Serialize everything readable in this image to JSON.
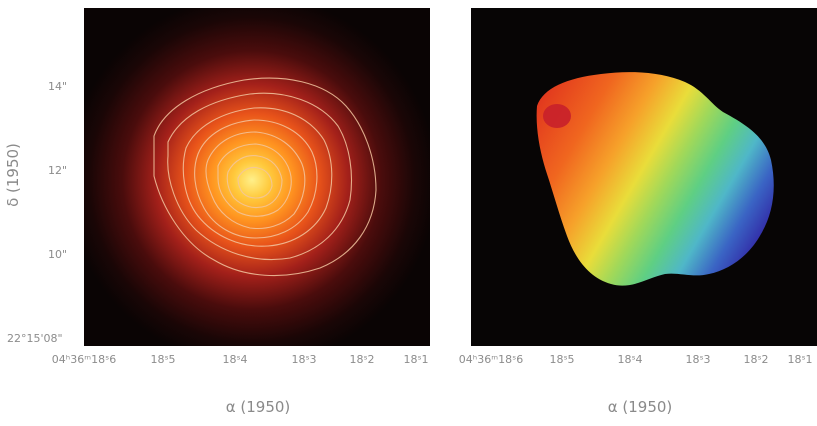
{
  "figure": {
    "left_panel": {
      "description_icon": "intensity-map-with-contours",
      "y_axis_label": "δ (1950)",
      "y_ticks": [
        "14\"",
        "12\"",
        "10\"",
        "22°15'08\""
      ],
      "x_ticks": [
        "04ʰ36ᵐ18ˢ6",
        "18ˢ5",
        "18ˢ4",
        "18ˢ3",
        "18ˢ2",
        "18ˢ1"
      ],
      "x_axis_label": "α (1950)"
    },
    "right_panel": {
      "description_icon": "velocity-field-map",
      "x_ticks": [
        "04ʰ36ᵐ18ˢ6",
        "18ˢ5",
        "18ˢ4",
        "18ˢ3",
        "18ˢ2",
        "18ˢ1"
      ],
      "x_axis_label": "α (1950)"
    }
  },
  "colors": {
    "background_panel": "#070505",
    "contour": "#f3c6a0",
    "label_gray": "#8a8a8a"
  }
}
